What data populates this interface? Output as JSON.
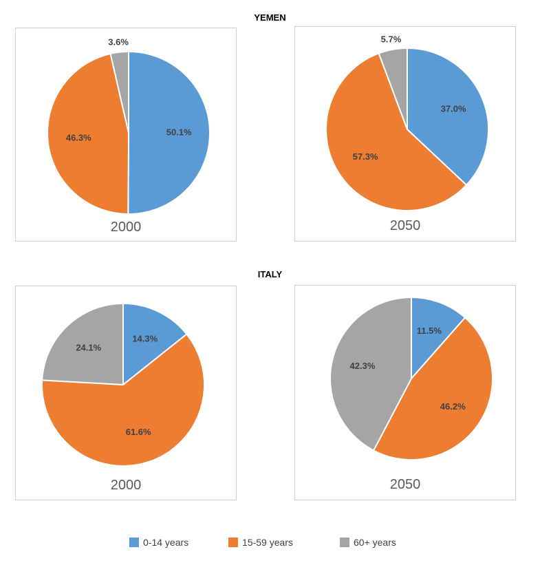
{
  "sections": [
    {
      "title": "YEMEN"
    },
    {
      "title": "ITALY"
    }
  ],
  "legend": [
    {
      "label": "0-14 years",
      "color": "#5b9bd5"
    },
    {
      "label": "15-59 years",
      "color": "#ed7d31"
    },
    {
      "label": "60+ years",
      "color": "#a5a5a5"
    }
  ],
  "chart_data": [
    {
      "type": "pie",
      "title": "2000",
      "group": "YEMEN",
      "categories": [
        "0-14 years",
        "15-59 years",
        "60+ years"
      ],
      "values": [
        50.1,
        46.3,
        3.6
      ],
      "labels": [
        "50.1%",
        "46.3%",
        "3.6%"
      ]
    },
    {
      "type": "pie",
      "title": "2050",
      "group": "YEMEN",
      "categories": [
        "0-14 years",
        "15-59 years",
        "60+ years"
      ],
      "values": [
        37.0,
        57.3,
        5.7
      ],
      "labels": [
        "37.0%",
        "57.3%",
        "5.7%"
      ]
    },
    {
      "type": "pie",
      "title": "2000",
      "group": "ITALY",
      "categories": [
        "0-14 years",
        "15-59 years",
        "60+ years"
      ],
      "values": [
        14.3,
        61.6,
        24.1
      ],
      "labels": [
        "14.3%",
        "61.6%",
        "24.1%"
      ]
    },
    {
      "type": "pie",
      "title": "2050",
      "group": "ITALY",
      "categories": [
        "0-14 years",
        "15-59 years",
        "60+ years"
      ],
      "values": [
        11.5,
        46.2,
        42.3
      ],
      "labels": [
        "11.5%",
        "46.2%",
        "42.3%"
      ]
    }
  ]
}
